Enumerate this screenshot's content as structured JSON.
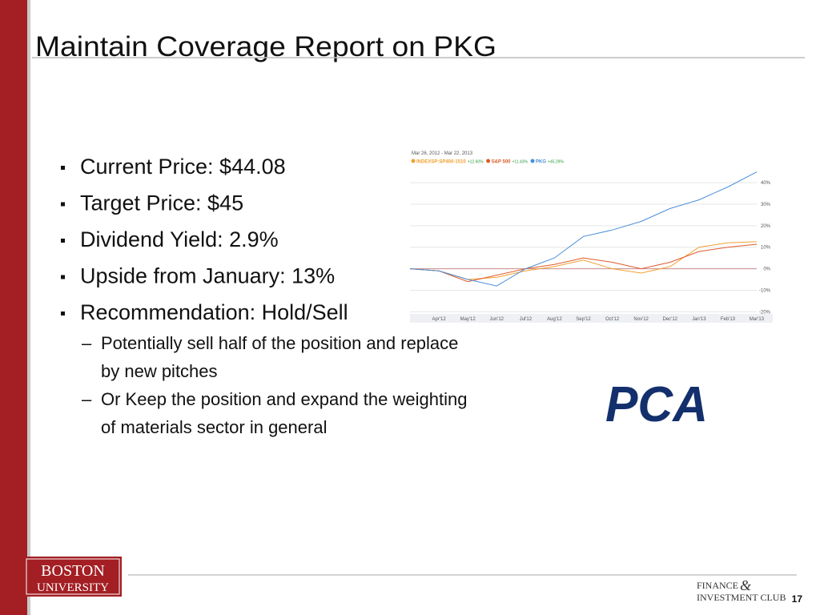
{
  "header": {
    "title": "Maintain Coverage Report on PKG"
  },
  "bullets": [
    "Current Price: $44.08",
    "Target Price: $45",
    "Dividend Yield: 2.9%",
    "Upside from January: 13%",
    "Recommendation: Hold/Sell"
  ],
  "sub_bullets": [
    [
      "Potentially sell half of the position and replace",
      "by new pitches"
    ],
    [
      "Or Keep the position and expand the weighting",
      "of materials sector in general"
    ]
  ],
  "logo": "PCA",
  "footer": {
    "university": [
      "BOSTON",
      "UNIVERSITY"
    ],
    "club": [
      "FINANCE",
      "&",
      "INVESTMENT CLUB"
    ],
    "page": "17"
  },
  "chart_data": {
    "type": "line",
    "subtitle": "Mar 26, 2012 - Mar 22, 2013",
    "categories": [
      null,
      "Apr'12",
      "May'12",
      "Jun'12",
      "Jul'12",
      "Aug'12",
      "Sep'12",
      "Oct'12",
      "Nov'12",
      "Dec'12",
      "Jan'13",
      "Feb'13",
      "Mar'13"
    ],
    "series": [
      {
        "name": "INDEXSP:SP400-1510",
        "change": "+12.60%",
        "color": "#f0a030",
        "values": [
          0,
          -1,
          -5,
          -4,
          -1,
          1,
          4,
          0,
          -2,
          1,
          10,
          12,
          12.6
        ]
      },
      {
        "name": "S&P 500",
        "change": "+11.43%",
        "color": "#e05a2a",
        "values": [
          0,
          -1,
          -6,
          -3,
          0,
          2,
          5,
          3,
          0,
          3,
          8,
          10,
          11.4
        ]
      },
      {
        "name": "PKG",
        "change": "+45.29%",
        "color": "#4a8fd8",
        "values": [
          0,
          -1,
          -5,
          -8,
          0,
          5,
          15,
          18,
          22,
          28,
          32,
          38,
          45
        ]
      }
    ],
    "ylim": [
      -21,
      46
    ],
    "yticks": [
      {
        "value": -20,
        "label": "-20%"
      },
      {
        "value": -10,
        "label": "-10%"
      },
      {
        "value": 0,
        "label": "0%"
      },
      {
        "value": 10,
        "label": "10%"
      },
      {
        "value": 20,
        "label": "20%"
      },
      {
        "value": 30,
        "label": "30%"
      },
      {
        "value": 40,
        "label": "40%"
      }
    ],
    "grid": true
  }
}
